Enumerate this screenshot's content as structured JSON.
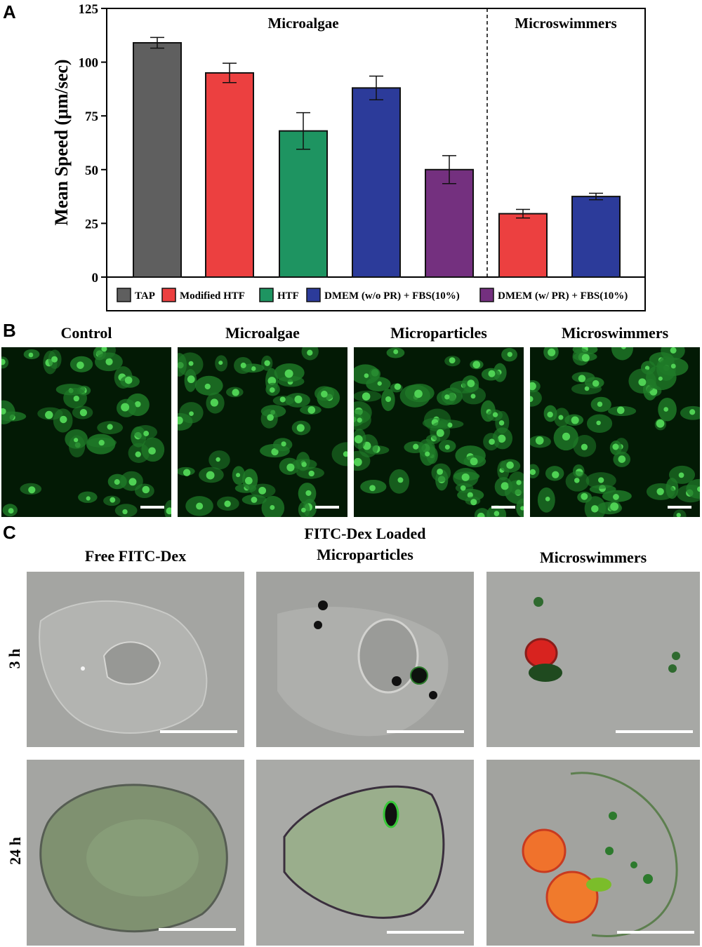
{
  "panels": {
    "a_letter": "A",
    "b_letter": "B",
    "c_letter": "C"
  },
  "chart_data": {
    "type": "bar",
    "ylabel": "Mean Speed (μm/sec)",
    "ylim": [
      0,
      125
    ],
    "yticks": [
      0,
      25,
      50,
      75,
      100,
      125
    ],
    "groups": [
      {
        "label": "Microalgae",
        "series": [
          "TAP",
          "Modified HTF",
          "HTF",
          "DMEM (w/o PR) + FBS(10%)",
          "DMEM (w/ PR) + FBS(10%)"
        ]
      },
      {
        "label": "Microswimmers",
        "series": [
          "Modified HTF",
          "DMEM (w/o PR) + FBS(10%)"
        ]
      }
    ],
    "bars": [
      {
        "group": "Microalgae",
        "series": "TAP",
        "value": 109,
        "error": 2.5
      },
      {
        "group": "Microalgae",
        "series": "Modified HTF",
        "value": 95,
        "error": 4.5
      },
      {
        "group": "Microalgae",
        "series": "HTF",
        "value": 68,
        "error": 8.5
      },
      {
        "group": "Microalgae",
        "series": "DMEM (w/o PR) + FBS(10%)",
        "value": 88,
        "error": 5.5
      },
      {
        "group": "Microalgae",
        "series": "DMEM (w/ PR) + FBS(10%)",
        "value": 50,
        "error": 6.5
      },
      {
        "group": "Microswimmers",
        "series": "Modified HTF",
        "value": 29.5,
        "error": 2
      },
      {
        "group": "Microswimmers",
        "series": "DMEM (w/o PR) + FBS(10%)",
        "value": 37.5,
        "error": 1.5
      }
    ],
    "legend": [
      {
        "name": "TAP",
        "color": "#5f5f5f"
      },
      {
        "name": "Modified HTF",
        "color": "#ec4040"
      },
      {
        "name": "HTF",
        "color": "#1e9461"
      },
      {
        "name": "DMEM (w/o PR) + FBS(10%)",
        "color": "#2c3b9a"
      },
      {
        "name": "DMEM (w/ PR) + FBS(10%)",
        "color": "#74307f"
      }
    ],
    "legend_position": "bottom",
    "grid": false
  },
  "panel_b": {
    "titles": [
      "Control",
      "Microalgae",
      "Microparticles",
      "Microswimmers"
    ]
  },
  "panel_c": {
    "col1": "Free FITC-Dex",
    "col2_line1": "FITC-Dex Loaded",
    "col2_line2": "Microparticles",
    "col3": "Microswimmers",
    "row1": "3 h",
    "row2": "24 h"
  }
}
